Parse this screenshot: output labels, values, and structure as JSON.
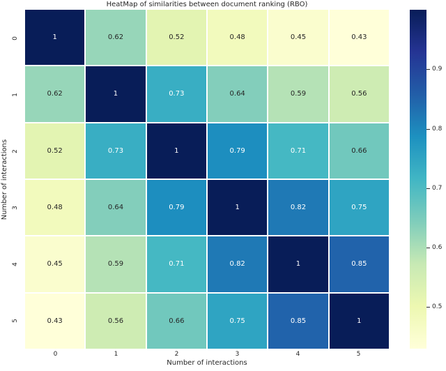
{
  "figure": {
    "title": "HeatMap of similarities between document ranking (RBO)",
    "xlabel": "Number of interactions",
    "ylabel": "Number of interactions"
  },
  "chart_data": {
    "type": "heatmap",
    "title": "HeatMap of similarities between document ranking (RBO)",
    "xlabel": "Number of interactions",
    "ylabel": "Number of interactions",
    "x_ticklabels": [
      "0",
      "1",
      "2",
      "3",
      "4",
      "5"
    ],
    "y_ticklabels": [
      "0",
      "1",
      "2",
      "3",
      "4",
      "5"
    ],
    "matrix": [
      [
        1.0,
        0.62,
        0.52,
        0.48,
        0.45,
        0.43
      ],
      [
        0.62,
        1.0,
        0.73,
        0.64,
        0.59,
        0.56
      ],
      [
        0.52,
        0.73,
        1.0,
        0.79,
        0.71,
        0.66
      ],
      [
        0.48,
        0.64,
        0.79,
        1.0,
        0.82,
        0.75
      ],
      [
        0.45,
        0.59,
        0.71,
        0.82,
        1.0,
        0.85
      ],
      [
        0.43,
        0.56,
        0.66,
        0.75,
        0.85,
        1.0
      ]
    ],
    "vmin": 0.43,
    "vmax": 1.0,
    "colorbar_ticks": [
      0.9,
      0.8,
      0.7,
      0.6,
      0.5
    ],
    "colorbar_position": "right",
    "grid_gap_color": "#ffffff",
    "annotation_color_on_light": "#262626",
    "annotation_color_on_dark": "#ffffff",
    "colormap": {
      "name": "YlGnBu",
      "anchors": [
        [
          0.0,
          "#ffffd9"
        ],
        [
          0.125,
          "#edf8b1"
        ],
        [
          0.25,
          "#c7e9b4"
        ],
        [
          0.375,
          "#7fcdbb"
        ],
        [
          0.5,
          "#41b6c4"
        ],
        [
          0.625,
          "#1d91c0"
        ],
        [
          0.75,
          "#225ea8"
        ],
        [
          0.875,
          "#253494"
        ],
        [
          1.0,
          "#081d58"
        ]
      ]
    }
  }
}
